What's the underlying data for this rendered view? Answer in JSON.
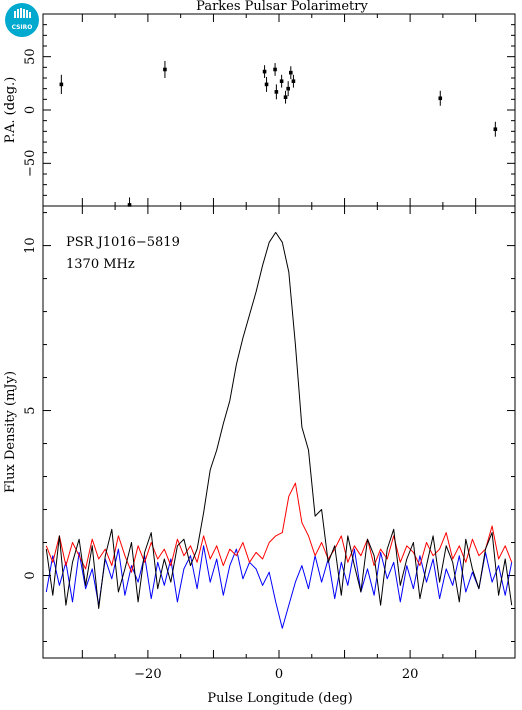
{
  "title": "Parkes Pulsar Polarimetry",
  "logo": {
    "text": "CSIRO",
    "color": "#00a9ce"
  },
  "annotations": [
    "PSR J1016−5819",
    "1370 MHz"
  ],
  "colors": {
    "total": "#000000",
    "linear": "#ff0000",
    "circular": "#0000ff",
    "axes": "#000000"
  },
  "chart_data": [
    {
      "type": "scatter",
      "panel": "position-angle",
      "ylabel": "P.A. (deg.)",
      "xlim": [
        -36,
        36
      ],
      "ylim": [
        -90,
        90
      ],
      "yticks": [
        -50,
        0,
        50
      ],
      "ytick_labels": [
        "−50",
        "0",
        "50"
      ],
      "points": [
        {
          "x": -33.2,
          "y": 24,
          "err": 9
        },
        {
          "x": -22.8,
          "y": -89,
          "err": 7
        },
        {
          "x": -17.4,
          "y": 38,
          "err": 8
        },
        {
          "x": -2.2,
          "y": 36,
          "err": 6
        },
        {
          "x": -1.9,
          "y": 24,
          "err": 7
        },
        {
          "x": -0.6,
          "y": 38,
          "err": 6
        },
        {
          "x": -0.4,
          "y": 17,
          "err": 7
        },
        {
          "x": 0.4,
          "y": 27,
          "err": 6
        },
        {
          "x": 1.0,
          "y": 12,
          "err": 6
        },
        {
          "x": 1.4,
          "y": 20,
          "err": 7
        },
        {
          "x": 1.8,
          "y": 35,
          "err": 6
        },
        {
          "x": 2.2,
          "y": 27,
          "err": 6
        },
        {
          "x": 24.6,
          "y": 11,
          "err": 7
        },
        {
          "x": 33.0,
          "y": -18,
          "err": 7
        }
      ]
    },
    {
      "type": "line",
      "panel": "flux-density",
      "xlabel": "Pulse Longitude (deg)",
      "ylabel": "Flux Density (mJy)",
      "xlim": [
        -36,
        36
      ],
      "ylim": [
        -2.5,
        11.2
      ],
      "xticks": [
        -20,
        0,
        20
      ],
      "xtick_labels": [
        "−20",
        "0",
        "20"
      ],
      "yticks": [
        0,
        5,
        10
      ],
      "ytick_labels": [
        "0",
        "5",
        "10"
      ],
      "x": [
        -35.5,
        -34.5,
        -33.5,
        -32.5,
        -31.5,
        -30.5,
        -29.5,
        -28.5,
        -27.5,
        -26.5,
        -25.5,
        -24.5,
        -23.5,
        -22.5,
        -21.5,
        -20.5,
        -19.5,
        -18.5,
        -17.5,
        -16.5,
        -15.5,
        -14.5,
        -13.5,
        -12.5,
        -11.5,
        -10.5,
        -9.5,
        -8.5,
        -7.5,
        -6.5,
        -5.5,
        -4.5,
        -3.5,
        -2.5,
        -1.5,
        -0.5,
        0.5,
        1.5,
        2.5,
        3.5,
        4.5,
        5.5,
        6.5,
        7.5,
        8.5,
        9.5,
        10.5,
        11.5,
        12.5,
        13.5,
        14.5,
        15.5,
        16.5,
        17.5,
        18.5,
        19.5,
        20.5,
        21.5,
        22.5,
        23.5,
        24.5,
        25.5,
        26.5,
        27.5,
        28.5,
        29.5,
        30.5,
        31.5,
        32.5,
        33.5,
        34.5,
        35.5
      ],
      "series": [
        {
          "id": "total",
          "values": [
            0.8,
            -0.6,
            1.2,
            -0.9,
            0.4,
            1.1,
            -0.3,
            0.9,
            -1.0,
            0.6,
            1.4,
            -0.5,
            0.2,
            1.0,
            -0.8,
            0.7,
            1.3,
            -0.4,
            0.5,
            -0.2,
            0.9,
            1.1,
            0.3,
            0.8,
            1.9,
            3.2,
            3.8,
            4.6,
            5.3,
            6.4,
            7.2,
            7.9,
            8.6,
            9.4,
            10.1,
            10.4,
            10.1,
            9.2,
            7.0,
            4.5,
            3.8,
            1.8,
            2.0,
            0.4,
            0.9,
            -0.6,
            1.2,
            0.3,
            -0.5,
            1.1,
            0.6,
            -0.9,
            0.8,
            1.4,
            -0.3,
            0.5,
            1.0,
            -0.7,
            0.3,
            1.2,
            -0.2,
            0.9,
            0.4,
            -0.8,
            1.1,
            0.2,
            -0.4,
            0.8,
            1.3,
            -0.6,
            0.5,
            -0.9
          ]
        },
        {
          "id": "linear",
          "values": [
            0.9,
            0.4,
            1.2,
            0.3,
            1.0,
            0.6,
            0.2,
            1.1,
            0.5,
            0.8,
            0.3,
            1.2,
            0.6,
            0.1,
            0.9,
            0.4,
            1.0,
            0.5,
            0.8,
            0.3,
            1.1,
            0.6,
            0.9,
            0.4,
            1.2,
            0.5,
            0.9,
            0.3,
            0.8,
            0.6,
            1.0,
            0.4,
            0.7,
            0.5,
            1.0,
            1.2,
            1.3,
            2.4,
            2.8,
            1.6,
            1.2,
            0.6,
            1.0,
            0.5,
            0.8,
            1.2,
            0.4,
            0.9,
            0.6,
            1.1,
            0.3,
            0.8,
            0.5,
            1.2,
            0.4,
            0.9,
            0.7,
            0.3,
            1.0,
            0.6,
            0.8,
            1.3,
            0.5,
            0.9,
            0.4,
            1.1,
            0.6,
            0.8,
            1.5,
            0.5,
            0.9,
            0.4
          ]
        },
        {
          "id": "circular",
          "values": [
            -0.5,
            0.6,
            -0.3,
            0.4,
            -0.8,
            0.7,
            -0.4,
            0.2,
            -0.9,
            0.5,
            -0.1,
            0.8,
            -0.6,
            0.3,
            -0.2,
            0.6,
            -0.7,
            0.4,
            -0.3,
            0.5,
            -0.8,
            0.2,
            0.6,
            -0.4,
            0.9,
            -0.2,
            0.5,
            -0.6,
            0.3,
            0.8,
            -0.1,
            0.4,
            0.2,
            -0.3,
            0.1,
            -0.8,
            -1.6,
            -0.9,
            -0.2,
            0.3,
            -0.4,
            0.6,
            -0.2,
            0.5,
            -0.7,
            0.4,
            -0.3,
            0.8,
            -0.5,
            0.2,
            -0.6,
            0.7,
            -0.1,
            0.4,
            -0.8,
            0.3,
            -0.4,
            0.6,
            -0.2,
            0.5,
            -0.7,
            0.2,
            -0.3,
            0.6,
            -0.5,
            0.1,
            -0.4,
            0.7,
            -0.2,
            0.3,
            -0.6,
            0.4
          ]
        }
      ]
    }
  ]
}
